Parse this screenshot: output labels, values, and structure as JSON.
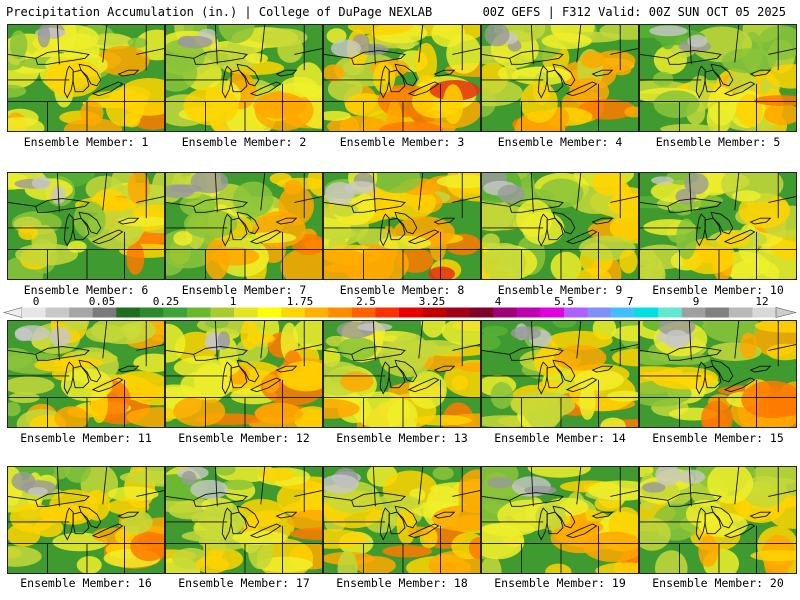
{
  "header": {
    "title_left": "Precipitation Accumulation (in.) | College of DuPage NEXLAB",
    "title_right": "00Z GEFS | F312 Valid: 00Z SUN OCT 05 2025"
  },
  "panels": [
    {
      "label": "Ensemble Member: 1"
    },
    {
      "label": "Ensemble Member: 2"
    },
    {
      "label": "Ensemble Member: 3"
    },
    {
      "label": "Ensemble Member: 4"
    },
    {
      "label": "Ensemble Member: 5"
    },
    {
      "label": "Ensemble Member: 6"
    },
    {
      "label": "Ensemble Member: 7"
    },
    {
      "label": "Ensemble Member: 8"
    },
    {
      "label": "Ensemble Member: 9"
    },
    {
      "label": "Ensemble Member: 10"
    },
    {
      "label": "Ensemble Member: 11"
    },
    {
      "label": "Ensemble Member: 12"
    },
    {
      "label": "Ensemble Member: 13"
    },
    {
      "label": "Ensemble Member: 14"
    },
    {
      "label": "Ensemble Member: 15"
    },
    {
      "label": "Ensemble Member: 16"
    },
    {
      "label": "Ensemble Member: 17"
    },
    {
      "label": "Ensemble Member: 18"
    },
    {
      "label": "Ensemble Member: 19"
    },
    {
      "label": "Ensemble Member: 20"
    }
  ],
  "colorbar": {
    "tick_labels": [
      "0",
      "0.05",
      "0.25",
      "1",
      "1.75",
      "2.5",
      "3.25",
      "4",
      "5.5",
      "7",
      "9",
      "12"
    ],
    "colors": [
      "#e6e6e6",
      "#c8c8c8",
      "#a6a6a6",
      "#7a7a7a",
      "#1e6e1e",
      "#2c8a2c",
      "#3ea43a",
      "#6ab82e",
      "#a8cc30",
      "#e4e420",
      "#ffff00",
      "#ffd700",
      "#ffb000",
      "#ff8c00",
      "#ff6000",
      "#ff3000",
      "#e80000",
      "#c00000",
      "#a00018",
      "#80002a",
      "#a0007a",
      "#c000b0",
      "#e000e0",
      "#b060ff",
      "#8090ff",
      "#40c0ff",
      "#00e0e0",
      "#60e8d0",
      "#a0a0a0",
      "#808080",
      "#b8b8b8",
      "#d8d8d8"
    ]
  }
}
